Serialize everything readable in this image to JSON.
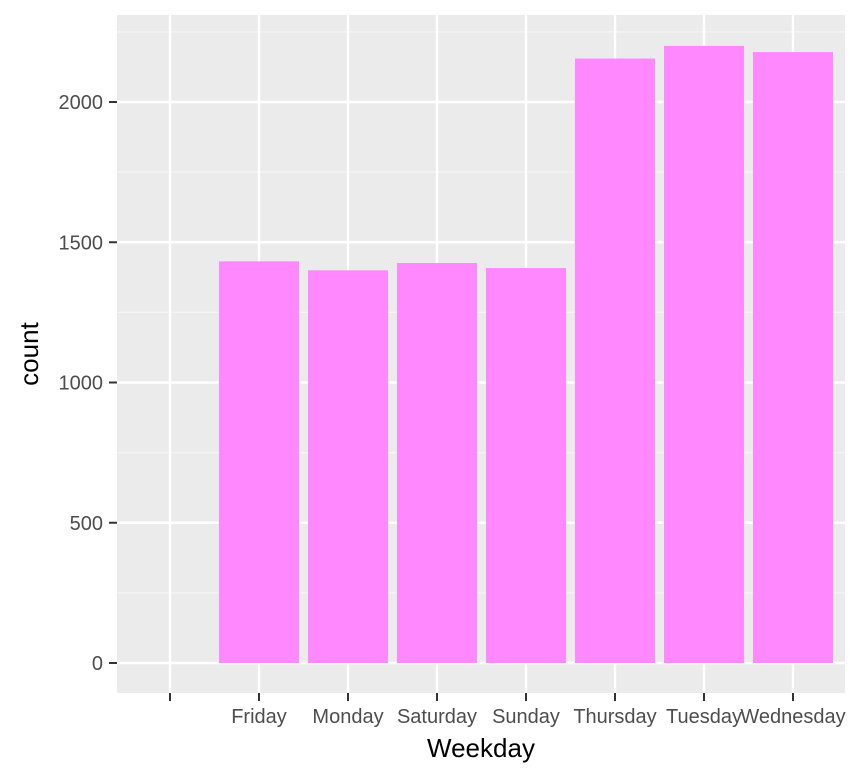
{
  "colors": {
    "panel_background": "#ebebeb",
    "grid_major": "#ffffff",
    "grid_minor": "#f5f5f5",
    "bar_fill": "#ff88ff",
    "tick_mark": "#333333",
    "tick_text": "#4d4d4d"
  },
  "chart_data": {
    "type": "bar",
    "categories": [
      "",
      "Friday",
      "Monday",
      "Saturday",
      "Sunday",
      "Thursday",
      "Tuesday",
      "Wednesday"
    ],
    "values": [
      0,
      1432,
      1400,
      1426,
      1408,
      2155,
      2200,
      2178
    ],
    "xlabel": "Weekday",
    "ylabel": "count",
    "ylim": [
      -110,
      2310
    ],
    "yticks": [
      0,
      500,
      1000,
      1500,
      2000
    ],
    "grid": true,
    "legend": "none"
  }
}
